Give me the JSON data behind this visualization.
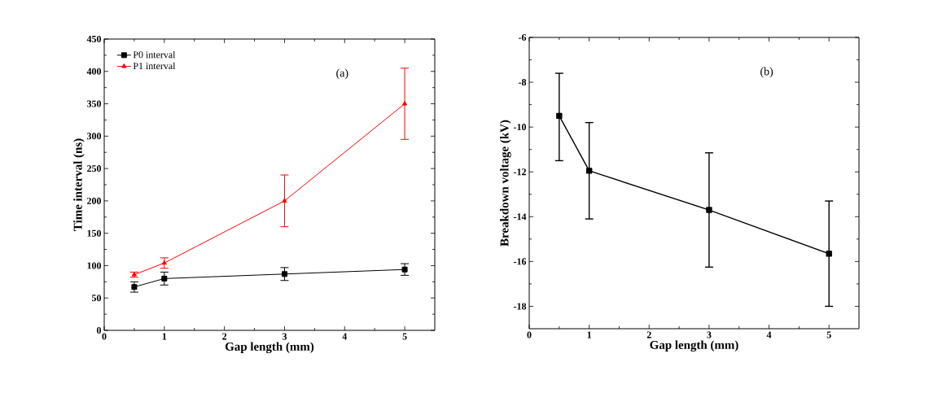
{
  "chart_data": [
    {
      "type": "line",
      "xlabel": "Gap length (mm)",
      "ylabel": "Time interval (ns)",
      "annotations": [
        "(a)"
      ],
      "x": [
        0.5,
        1,
        3,
        5
      ],
      "xlim": [
        0,
        5.5
      ],
      "xticks": [
        0,
        1,
        2,
        3,
        4,
        5
      ],
      "ylim": [
        0,
        450
      ],
      "yticks": [
        0,
        50,
        100,
        150,
        200,
        250,
        300,
        350,
        400,
        450
      ],
      "legend": "top left",
      "series": [
        {
          "name": "P0 interval",
          "color": "#000000",
          "marker": "square",
          "values": [
            67,
            80,
            87,
            94
          ],
          "errors": [
            8,
            10,
            10,
            9
          ]
        },
        {
          "name": "P1 interval",
          "color": "#ff0000",
          "marker": "triangle",
          "values": [
            86,
            104,
            200,
            350
          ],
          "errors": [
            4,
            8,
            40,
            55
          ]
        }
      ]
    },
    {
      "type": "line",
      "xlabel": "Gap length (mm)",
      "ylabel": "Breakdown voltage (kV)",
      "annotations": [
        "(b)"
      ],
      "x": [
        0.5,
        1,
        3,
        5
      ],
      "xlim": [
        0,
        5.5
      ],
      "xticks": [
        0,
        1,
        2,
        3,
        4,
        5
      ],
      "ylim": [
        -19,
        -6
      ],
      "yticks": [
        -18,
        -16,
        -14,
        -12,
        -10,
        -8,
        -6
      ],
      "marker": "square",
      "series": [
        {
          "color": "#000000",
          "values": [
            -9.5,
            -11.95,
            -13.7,
            -15.65
          ],
          "errors": [
            [
              -11.5,
              -7.6
            ],
            [
              -14.1,
              -9.8
            ],
            [
              -16.25,
              -11.15
            ],
            [
              -18,
              -13.3
            ]
          ]
        }
      ]
    }
  ]
}
